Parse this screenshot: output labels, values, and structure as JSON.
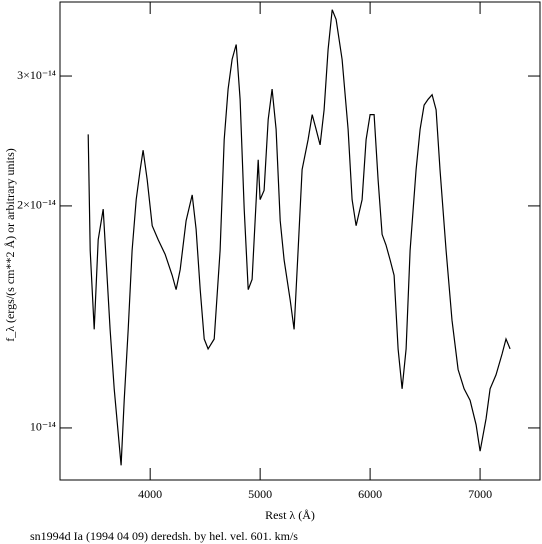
{
  "chart_data": {
    "type": "line",
    "title": "sn1994d Ia (1994 04 09) deredsh. by hel. vel.   601. km/s",
    "x_label": "Rest λ (Å)",
    "y_label": "f_λ (ergs/(s cm**2 Å) or arbitrary units)",
    "ylog": true,
    "xlim": [
      3180,
      7545
    ],
    "ylim": [
      8.5e-15,
      3.78e-14
    ],
    "xticks": [
      4000,
      5000,
      6000,
      7000
    ],
    "yticks": [
      {
        "value": 1e-14,
        "label": "10⁻¹⁴"
      },
      {
        "value": 2e-14,
        "label": "2×10⁻¹⁴"
      },
      {
        "value": 3e-14,
        "label": "3×10⁻¹⁴"
      }
    ],
    "x": [
      3436,
      3455,
      3491,
      3527,
      3573,
      3636,
      3673,
      3736,
      3764,
      3800,
      3836,
      3873,
      3909,
      3936,
      3973,
      4018,
      4073,
      4136,
      4200,
      4236,
      4273,
      4327,
      4382,
      4418,
      4455,
      4491,
      4527,
      4582,
      4636,
      4673,
      4709,
      4745,
      4782,
      4818,
      4855,
      4891,
      4927,
      4964,
      4982,
      5000,
      5036,
      5073,
      5109,
      5145,
      5182,
      5218,
      5273,
      5309,
      5345,
      5382,
      5436,
      5473,
      5509,
      5545,
      5582,
      5618,
      5655,
      5691,
      5745,
      5800,
      5836,
      5873,
      5927,
      5964,
      6000,
      6036,
      6073,
      6109,
      6145,
      6182,
      6218,
      6255,
      6291,
      6327,
      6364,
      6418,
      6455,
      6491,
      6527,
      6564,
      6600,
      6636,
      6691,
      6745,
      6800,
      6855,
      6909,
      6964,
      7000,
      7055,
      7091,
      7145,
      7200,
      7236,
      7273
    ],
    "series": [
      {
        "color": "#000000",
        "values": [
          2.5e-14,
          1.74e-14,
          1.36e-14,
          1.8e-14,
          1.98e-14,
          1.36e-14,
          1.13e-14,
          8.9e-15,
          1.09e-14,
          1.36e-14,
          1.74e-14,
          2.04e-14,
          2.24e-14,
          2.38e-14,
          2.17e-14,
          1.88e-14,
          1.8e-14,
          1.72e-14,
          1.61e-14,
          1.54e-14,
          1.64e-14,
          1.91e-14,
          2.07e-14,
          1.86e-14,
          1.54e-14,
          1.32e-14,
          1.28e-14,
          1.32e-14,
          1.74e-14,
          2.46e-14,
          2.88e-14,
          3.16e-14,
          3.31e-14,
          2.79e-14,
          1.98e-14,
          1.54e-14,
          1.59e-14,
          2.04e-14,
          2.31e-14,
          2.04e-14,
          2.1e-14,
          2.62e-14,
          2.88e-14,
          2.54e-14,
          1.91e-14,
          1.69e-14,
          1.49e-14,
          1.36e-14,
          1.74e-14,
          2.24e-14,
          2.46e-14,
          2.66e-14,
          2.54e-14,
          2.42e-14,
          2.7e-14,
          3.26e-14,
          3.69e-14,
          3.58e-14,
          3.16e-14,
          2.54e-14,
          2.04e-14,
          1.88e-14,
          2.04e-14,
          2.46e-14,
          2.66e-14,
          2.66e-14,
          2.17e-14,
          1.83e-14,
          1.77e-14,
          1.69e-14,
          1.61e-14,
          1.28e-14,
          1.13e-14,
          1.28e-14,
          1.74e-14,
          2.24e-14,
          2.54e-14,
          2.74e-14,
          2.79e-14,
          2.83e-14,
          2.7e-14,
          2.24e-14,
          1.74e-14,
          1.4e-14,
          1.2e-14,
          1.13e-14,
          1.09e-14,
          1.01e-14,
          9.3e-15,
          1.03e-14,
          1.13e-14,
          1.18e-14,
          1.26e-14,
          1.32e-14,
          1.28e-14
        ]
      }
    ]
  }
}
